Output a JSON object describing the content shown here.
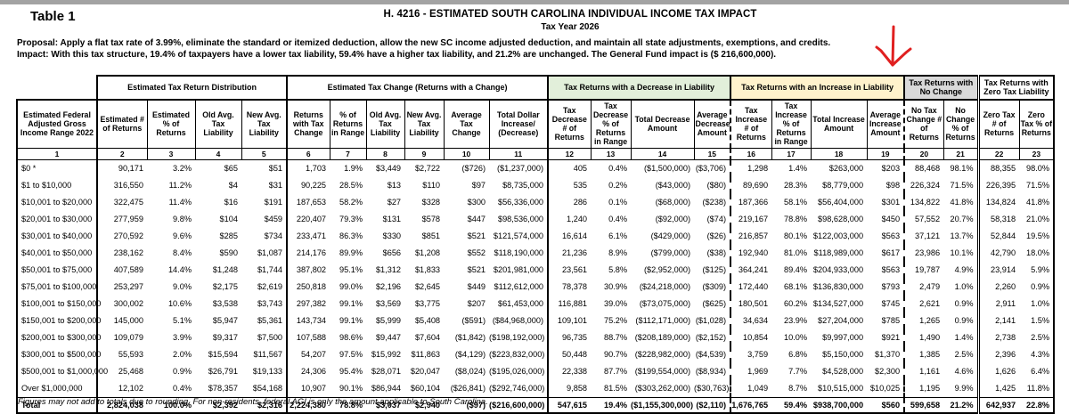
{
  "document": {
    "table_label": "Table 1",
    "title": "H. 4216 - ESTIMATED SOUTH CAROLINA INDIVIDUAL INCOME TAX IMPACT",
    "subtitle": "Tax Year 2026",
    "proposal_line": "Proposal: Apply a flat tax rate of 3.99%, eliminate the standard or itemized deduction, allow the new SC income adjusted deduction, and maintain all state adjustments, exemptions, and credits.",
    "impact_line": "Impact: With this tax structure, 19.4% of taxpayers have a lower tax liability, 59.4% have a higher tax liability, and 21.2% are unchanged. The General Fund impact is ($ 216,600,000).",
    "footnote": "Figures may not add to totals due to rounding. For non-residents, federal AGI is only the amount applicable to South Carolina."
  },
  "colors": {
    "decrease_group_bg": "#E2EFDA",
    "increase_group_bg": "#FFF2CC",
    "no_change_group_bg": "#D9D9D9",
    "zero_tax_group_bg": "#FFFFFF",
    "annotation_arrow": "#E02020",
    "top_strip": "#A3A3A3"
  },
  "annotations": {
    "arrow_icon": "red-down-arrow pointing at Average Increase Amount column"
  },
  "table": {
    "groups": [
      {
        "label": "",
        "span": 1,
        "bg": "#FFFFFF"
      },
      {
        "label": "Estimated Tax Return Distribution",
        "span": 4,
        "bg": "#FFFFFF"
      },
      {
        "label": "Estimated Tax Change (Returns with a Change)",
        "span": 6,
        "bg": "#FFFFFF"
      },
      {
        "label": "Tax Returns with a Decrease in Liability",
        "span": 4,
        "bg": "#E2EFDA"
      },
      {
        "label": "Tax Returns with an Increase in Liability",
        "span": 4,
        "bg": "#FFF2CC"
      },
      {
        "label": "Tax Returns with No Change",
        "span": 2,
        "bg": "#D9D9D9"
      },
      {
        "label": "Tax Returns with Zero Tax Liability",
        "span": 2,
        "bg": "#FFFFFF"
      }
    ],
    "columns": [
      "Estimated Federal Adjusted Gross Income Range 2022",
      "Estimated # of Returns",
      "Estimated % of Returns",
      "Old Avg. Tax Liability",
      "New Avg. Tax Liability",
      "Returns with Tax Change",
      "% of Returns in Range",
      "Old Avg. Tax Liability",
      "New Avg. Tax Liability",
      "Average Tax Change",
      "Total Dollar Increase/ (Decrease)",
      "Tax Decrease # of Returns",
      "Tax Decrease % of Returns in Range",
      "Total Decrease Amount",
      "Average Decrease Amount",
      "Tax Increase # of Returns",
      "Tax Increase % of Returns in Range",
      "Total Increase Amount",
      "Average Increase Amount",
      "No Tax Change # of Returns",
      "No Change % of Returns",
      "Zero Tax # of Returns",
      "Zero Tax % of Returns"
    ],
    "column_numbers": [
      "1",
      "2",
      "3",
      "4",
      "5",
      "6",
      "7",
      "8",
      "9",
      "10",
      "11",
      "12",
      "13",
      "14",
      "15",
      "16",
      "17",
      "18",
      "19",
      "20",
      "21",
      "22",
      "23"
    ],
    "rows": [
      [
        "$0 *",
        "90,171",
        "3.2%",
        "$65",
        "$51",
        "1,703",
        "1.9%",
        "$3,449",
        "$2,722",
        "($726)",
        "($1,237,000)",
        "405",
        "0.4%",
        "($1,500,000)",
        "($3,706)",
        "1,298",
        "1.4%",
        "$263,000",
        "$203",
        "88,468",
        "98.1%",
        "88,355",
        "98.0%"
      ],
      [
        "$1 to $10,000",
        "316,550",
        "11.2%",
        "$4",
        "$31",
        "90,225",
        "28.5%",
        "$13",
        "$110",
        "$97",
        "$8,735,000",
        "535",
        "0.2%",
        "($43,000)",
        "($80)",
        "89,690",
        "28.3%",
        "$8,779,000",
        "$98",
        "226,324",
        "71.5%",
        "226,395",
        "71.5%"
      ],
      [
        "$10,001 to $20,000",
        "322,475",
        "11.4%",
        "$16",
        "$191",
        "187,653",
        "58.2%",
        "$27",
        "$328",
        "$300",
        "$56,336,000",
        "286",
        "0.1%",
        "($68,000)",
        "($238)",
        "187,366",
        "58.1%",
        "$56,404,000",
        "$301",
        "134,822",
        "41.8%",
        "134,824",
        "41.8%"
      ],
      [
        "$20,001 to $30,000",
        "277,959",
        "9.8%",
        "$104",
        "$459",
        "220,407",
        "79.3%",
        "$131",
        "$578",
        "$447",
        "$98,536,000",
        "1,240",
        "0.4%",
        "($92,000)",
        "($74)",
        "219,167",
        "78.8%",
        "$98,628,000",
        "$450",
        "57,552",
        "20.7%",
        "58,318",
        "21.0%"
      ],
      [
        "$30,001 to $40,000",
        "270,592",
        "9.6%",
        "$285",
        "$734",
        "233,471",
        "86.3%",
        "$330",
        "$851",
        "$521",
        "$121,574,000",
        "16,614",
        "6.1%",
        "($429,000)",
        "($26)",
        "216,857",
        "80.1%",
        "$122,003,000",
        "$563",
        "37,121",
        "13.7%",
        "52,844",
        "19.5%"
      ],
      [
        "$40,001 to $50,000",
        "238,162",
        "8.4%",
        "$590",
        "$1,087",
        "214,176",
        "89.9%",
        "$656",
        "$1,208",
        "$552",
        "$118,190,000",
        "21,236",
        "8.9%",
        "($799,000)",
        "($38)",
        "192,940",
        "81.0%",
        "$118,989,000",
        "$617",
        "23,986",
        "10.1%",
        "42,790",
        "18.0%"
      ],
      [
        "$50,001 to $75,000",
        "407,589",
        "14.4%",
        "$1,248",
        "$1,744",
        "387,802",
        "95.1%",
        "$1,312",
        "$1,833",
        "$521",
        "$201,981,000",
        "23,561",
        "5.8%",
        "($2,952,000)",
        "($125)",
        "364,241",
        "89.4%",
        "$204,933,000",
        "$563",
        "19,787",
        "4.9%",
        "23,914",
        "5.9%"
      ],
      [
        "$75,001 to $100,000",
        "253,297",
        "9.0%",
        "$2,175",
        "$2,619",
        "250,818",
        "99.0%",
        "$2,196",
        "$2,645",
        "$449",
        "$112,612,000",
        "78,378",
        "30.9%",
        "($24,218,000)",
        "($309)",
        "172,440",
        "68.1%",
        "$136,830,000",
        "$793",
        "2,479",
        "1.0%",
        "2,260",
        "0.9%"
      ],
      [
        "$100,001 to $150,000",
        "300,002",
        "10.6%",
        "$3,538",
        "$3,743",
        "297,382",
        "99.1%",
        "$3,569",
        "$3,775",
        "$207",
        "$61,453,000",
        "116,881",
        "39.0%",
        "($73,075,000)",
        "($625)",
        "180,501",
        "60.2%",
        "$134,527,000",
        "$745",
        "2,621",
        "0.9%",
        "2,911",
        "1.0%"
      ],
      [
        "$150,001 to $200,000",
        "145,000",
        "5.1%",
        "$5,947",
        "$5,361",
        "143,734",
        "99.1%",
        "$5,999",
        "$5,408",
        "($591)",
        "($84,968,000)",
        "109,101",
        "75.2%",
        "($112,171,000)",
        "($1,028)",
        "34,634",
        "23.9%",
        "$27,204,000",
        "$785",
        "1,265",
        "0.9%",
        "2,141",
        "1.5%"
      ],
      [
        "$200,001 to $300,000",
        "109,079",
        "3.9%",
        "$9,317",
        "$7,500",
        "107,588",
        "98.6%",
        "$9,447",
        "$7,604",
        "($1,842)",
        "($198,192,000)",
        "96,735",
        "88.7%",
        "($208,189,000)",
        "($2,152)",
        "10,854",
        "10.0%",
        "$9,997,000",
        "$921",
        "1,490",
        "1.4%",
        "2,738",
        "2.5%"
      ],
      [
        "$300,001 to $500,000",
        "55,593",
        "2.0%",
        "$15,594",
        "$11,567",
        "54,207",
        "97.5%",
        "$15,992",
        "$11,863",
        "($4,129)",
        "($223,832,000)",
        "50,448",
        "90.7%",
        "($228,982,000)",
        "($4,539)",
        "3,759",
        "6.8%",
        "$5,150,000",
        "$1,370",
        "1,385",
        "2.5%",
        "2,396",
        "4.3%"
      ],
      [
        "$500,001 to $1,000,000",
        "25,468",
        "0.9%",
        "$26,791",
        "$19,133",
        "24,306",
        "95.4%",
        "$28,071",
        "$20,047",
        "($8,024)",
        "($195,026,000)",
        "22,338",
        "87.7%",
        "($199,554,000)",
        "($8,934)",
        "1,969",
        "7.7%",
        "$4,528,000",
        "$2,300",
        "1,161",
        "4.6%",
        "1,626",
        "6.4%"
      ],
      [
        "Over $1,000,000",
        "12,102",
        "0.4%",
        "$78,357",
        "$54,168",
        "10,907",
        "90.1%",
        "$86,944",
        "$60,104",
        "($26,841)",
        "($292,746,000)",
        "9,858",
        "81.5%",
        "($303,262,000)",
        "($30,763)",
        "1,049",
        "8.7%",
        "$10,515,000",
        "$10,025",
        "1,195",
        "9.9%",
        "1,425",
        "11.8%"
      ]
    ],
    "total_row": [
      "Total",
      "2,824,038",
      "100.0%",
      "$2,392",
      "$2,316",
      "2,224,380",
      "78.8%",
      "$3,037",
      "$2,940",
      "($97)",
      "($216,600,000)",
      "547,615",
      "19.4%",
      "($1,155,300,000)",
      "($2,110)",
      "1,676,765",
      "59.4%",
      "$938,700,000",
      "$560",
      "599,658",
      "21.2%",
      "642,937",
      "22.8%"
    ]
  }
}
